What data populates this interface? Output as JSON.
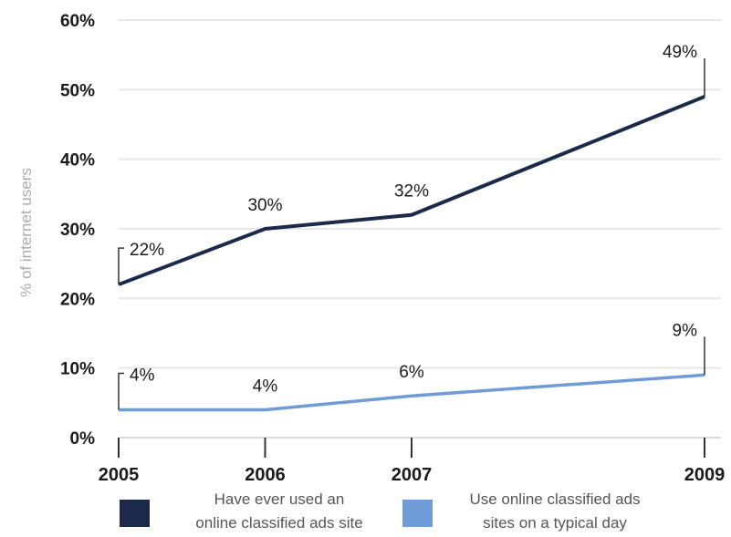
{
  "chart_data": {
    "type": "line",
    "title": "",
    "xlabel": "",
    "ylabel": "% of internet users",
    "ylim": [
      0,
      60
    ],
    "yticks": [
      "0%",
      "10%",
      "20%",
      "30%",
      "40%",
      "50%",
      "60%"
    ],
    "x": [
      2005,
      2006,
      2007,
      2009
    ],
    "x_tick_labels": [
      "2005",
      "2006",
      "2007",
      "2009"
    ],
    "grid": true,
    "legend_position": "bottom",
    "series": [
      {
        "name": "Have ever used an online classified ads site",
        "legend_lines": [
          "Have ever used an",
          "online classified ads site"
        ],
        "values": [
          22,
          30,
          32,
          49
        ],
        "data_labels": [
          "22%",
          "30%",
          "32%",
          "49%"
        ],
        "color": "#1b2a4a"
      },
      {
        "name": "Use online classified ads sites on a typical day",
        "legend_lines": [
          "Use online classified ads",
          "sites on a typical day"
        ],
        "values": [
          4,
          4,
          6,
          9
        ],
        "data_labels": [
          "4%",
          "4%",
          "6%",
          "9%"
        ],
        "color": "#6f9bd6"
      }
    ]
  }
}
